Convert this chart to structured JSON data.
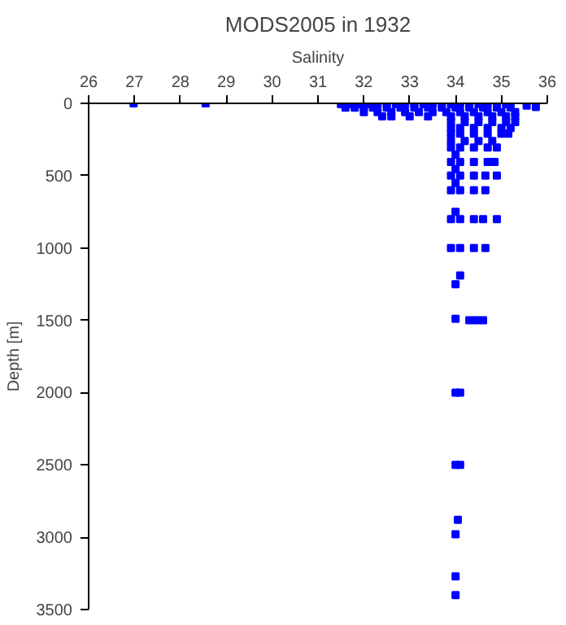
{
  "chart_data": {
    "type": "scatter",
    "title": "MODS2005 in 1932",
    "xlabel": "Salinity",
    "ylabel": "Depth [m]",
    "xlim": [
      26,
      36
    ],
    "xticks": [
      26,
      27,
      28,
      29,
      30,
      31,
      32,
      33,
      34,
      35,
      36
    ],
    "ylim": [
      3500,
      0
    ],
    "yticks": [
      0,
      500,
      1000,
      1500,
      2000,
      2500,
      3000,
      3500
    ],
    "grid": false,
    "marker": "square",
    "color": "#0000ff",
    "x": [
      26.98,
      28.55,
      35.55,
      35.75,
      31.5,
      31.7,
      31.9,
      32.1,
      32.3,
      32.5,
      32.7,
      32.9,
      33.1,
      33.3,
      33.5,
      33.7,
      33.9,
      34.1,
      34.3,
      34.5,
      34.7,
      34.9,
      35.1,
      31.6,
      31.8,
      32.0,
      32.2,
      32.5,
      32.8,
      33.1,
      33.4,
      33.7,
      34.0,
      34.3,
      34.6,
      34.9,
      35.2,
      32.0,
      32.3,
      32.6,
      32.9,
      33.2,
      33.5,
      33.8,
      34.1,
      34.4,
      34.7,
      35.0,
      35.3,
      32.4,
      32.6,
      33.0,
      33.4,
      33.9,
      34.2,
      34.5,
      34.8,
      35.1,
      35.3,
      33.9,
      34.2,
      34.5,
      34.8,
      35.1,
      35.3,
      33.9,
      34.1,
      34.4,
      34.7,
      35.0,
      35.2,
      33.9,
      34.1,
      34.4,
      34.7,
      35.0,
      35.15,
      33.9,
      34.2,
      34.5,
      34.8,
      33.9,
      34.1,
      34.4,
      34.7,
      34.9,
      34.0,
      33.9,
      34.1,
      34.4,
      34.7,
      34.85,
      34.0,
      33.9,
      34.1,
      34.4,
      34.65,
      34.9,
      34.0,
      33.9,
      34.1,
      34.4,
      34.65,
      34.0,
      33.9,
      34.1,
      34.4,
      34.6,
      34.9,
      33.9,
      34.1,
      34.4,
      34.65,
      34.1,
      34.0,
      34.0,
      34.3,
      34.45,
      34.6,
      34.0,
      34.1,
      34.0,
      34.1,
      34.05,
      34.0,
      34.0,
      34.0
    ],
    "values": [
      0,
      0,
      15,
      25,
      5,
      5,
      5,
      5,
      5,
      5,
      5,
      5,
      5,
      5,
      5,
      5,
      5,
      5,
      5,
      5,
      5,
      5,
      5,
      30,
      30,
      30,
      30,
      30,
      30,
      30,
      30,
      30,
      30,
      30,
      30,
      30,
      30,
      60,
      60,
      60,
      60,
      60,
      60,
      60,
      60,
      60,
      60,
      60,
      60,
      90,
      90,
      90,
      90,
      90,
      90,
      90,
      90,
      90,
      90,
      130,
      130,
      130,
      130,
      130,
      130,
      170,
      170,
      170,
      170,
      170,
      170,
      210,
      210,
      210,
      210,
      210,
      210,
      260,
      260,
      260,
      260,
      305,
      305,
      305,
      305,
      305,
      355,
      405,
      405,
      405,
      405,
      405,
      455,
      500,
      500,
      500,
      500,
      500,
      550,
      600,
      600,
      600,
      600,
      750,
      800,
      800,
      800,
      800,
      800,
      1000,
      1000,
      1000,
      1000,
      1190,
      1250,
      1490,
      1500,
      1500,
      1500,
      2000,
      2000,
      2500,
      2500,
      2880,
      2980,
      3270,
      3400
    ]
  }
}
